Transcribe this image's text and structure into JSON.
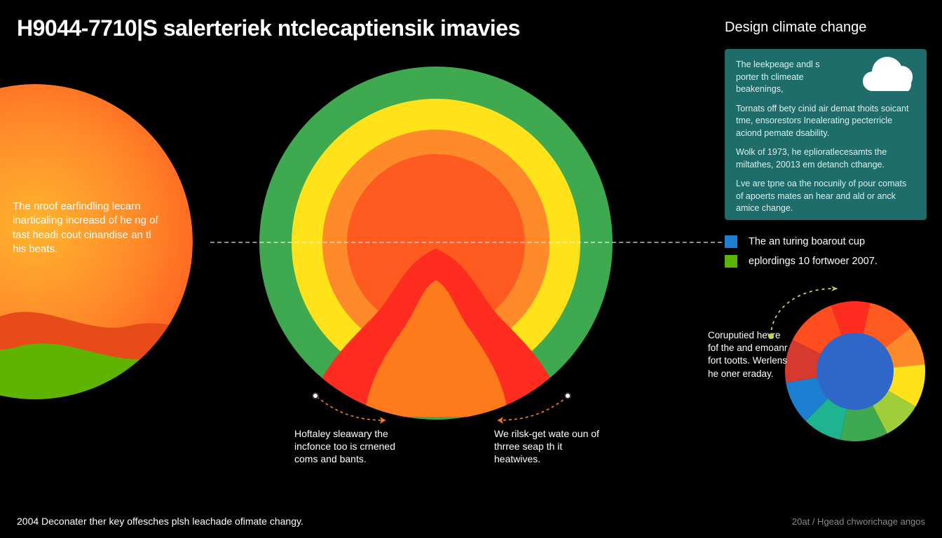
{
  "title": "H9044-7710|S salerteriek ntclecaptiensik imavies",
  "background_color": "#000000",
  "left_circle": {
    "diameter": 450,
    "gradient_stops": [
      "#ff5a1f",
      "#ff8a2a",
      "#ffb32e"
    ],
    "wave_top_color": "#e84b1a",
    "wave_bottom_color": "#5fb400",
    "text": "The nroof earfindling lecarn inarticaling increasd of he ng of tast headi cout cinandise an tl his beats."
  },
  "center_circle": {
    "diameter": 504,
    "rings": [
      {
        "color": "#3fa94f",
        "outer": 504
      },
      {
        "color": "#ffe21a",
        "outer": 412
      },
      {
        "color": "#ff8a2a",
        "outer": 324
      },
      {
        "color": "#ff5a1f",
        "outer": 254
      }
    ],
    "blob_colors": {
      "red": "#ff2d1f",
      "inner_orange": "#ff7a1a"
    }
  },
  "dashed_line_color": "#ffffff",
  "callouts": {
    "left": {
      "text": "Hoftaley sleawary the incfonce too is crnened coms and bants.",
      "leader_color": "#ff7a1a"
    },
    "right": {
      "text": "We rilsk-get wate oun of thrree seap th it heatwives.",
      "leader_color": "#ff7a1a"
    }
  },
  "sidebar": {
    "title": "Design climate change",
    "panel_bg": "#1e6d6a",
    "cloud_color": "#ffffff",
    "paragraphs": [
      "The leekpeage andl s porter th climeate beakenings,",
      "Tornats off bety cinid air demat thoits soicant tme, ensorestors Inealerating pecterricle aciond pemate dsability.",
      "Wolk of 1973, he eplioratlecesamts the miltathes, 20013 em detanch cthange.",
      "Lve are tpne oa the nocunily of pour comats of apoerts mates an hear and ald or anck amice change."
    ],
    "legend": [
      {
        "swatch": "#1d7fd1",
        "label": "The an turing boarout cup"
      },
      {
        "swatch": "#5ab400",
        "label": "eplordings 10 fortwoer 2007."
      }
    ]
  },
  "donut": {
    "diameter": 200,
    "inner_ratio": 0.55,
    "inner_color": "#2f66c9",
    "segments": [
      {
        "color": "#ff2d1f",
        "value": 9
      },
      {
        "color": "#ff5a1f",
        "value": 11
      },
      {
        "color": "#ff8a2a",
        "value": 9
      },
      {
        "color": "#ffe21a",
        "value": 10
      },
      {
        "color": "#9fce3a",
        "value": 9
      },
      {
        "color": "#3fa94f",
        "value": 11
      },
      {
        "color": "#1eb48f",
        "value": 9
      },
      {
        "color": "#1d7fd1",
        "value": 10
      },
      {
        "color": "#d63a2e",
        "value": 10
      },
      {
        "color": "#ff4d1f",
        "value": 12
      }
    ],
    "text": "Coruputied hevre fof the and emoanr fort tootts. Werlens he oner eraday.",
    "arrow_color": "#b7d94a"
  },
  "footer": {
    "left": "2004 Deconater ther key offesches plsh leachade ofimate changy.",
    "right": "20at / Hgead chworichage angos"
  }
}
